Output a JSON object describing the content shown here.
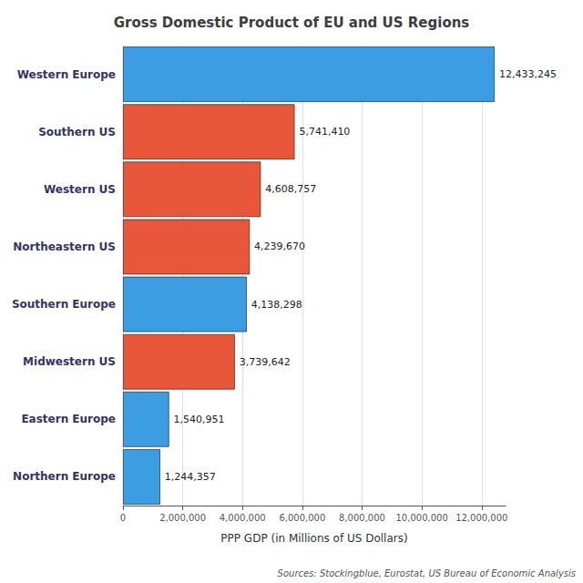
{
  "chart_data": {
    "type": "bar",
    "orientation": "horizontal",
    "title": "Gross Domestic Product of EU and US Regions",
    "xlabel": "PPP GDP (in Millions of US Dollars)",
    "annotation": "Sources: Stockingblue, Eurostat, US Bureau of Economic Analysis",
    "categories": [
      "Western Europe",
      "Southern US",
      "Western US",
      "Northeastern US",
      "Southern Europe",
      "Midwestern US",
      "Eastern Europe",
      "Northern Europe"
    ],
    "values": [
      12433245,
      5741410,
      4608757,
      4239670,
      4138298,
      3739642,
      1540951,
      1244357
    ],
    "value_labels": [
      "12,433,245",
      "5,741,410",
      "4,608,757",
      "4,239,670",
      "4,138,298",
      "3,739,642",
      "1,540,951",
      "1,244,357"
    ],
    "colors": [
      "#3d9de3",
      "#e8573a",
      "#e8573a",
      "#e8573a",
      "#3d9de3",
      "#e8573a",
      "#3d9de3",
      "#3d9de3"
    ],
    "xlim": [
      0,
      12800000
    ],
    "xticks": [
      0,
      {
        "value": 2000000,
        "label": "2,000,000"
      },
      {
        "value": 4000000,
        "label": "4,000,000"
      },
      {
        "value": 6000000,
        "label": "6,000,000"
      },
      {
        "value": 8000000,
        "label": "8,000,000"
      },
      {
        "value": 10000000,
        "label": "10,000,000"
      },
      {
        "value": 12000000,
        "label": "12,000,000"
      }
    ],
    "grid": true,
    "data_labels": true
  }
}
